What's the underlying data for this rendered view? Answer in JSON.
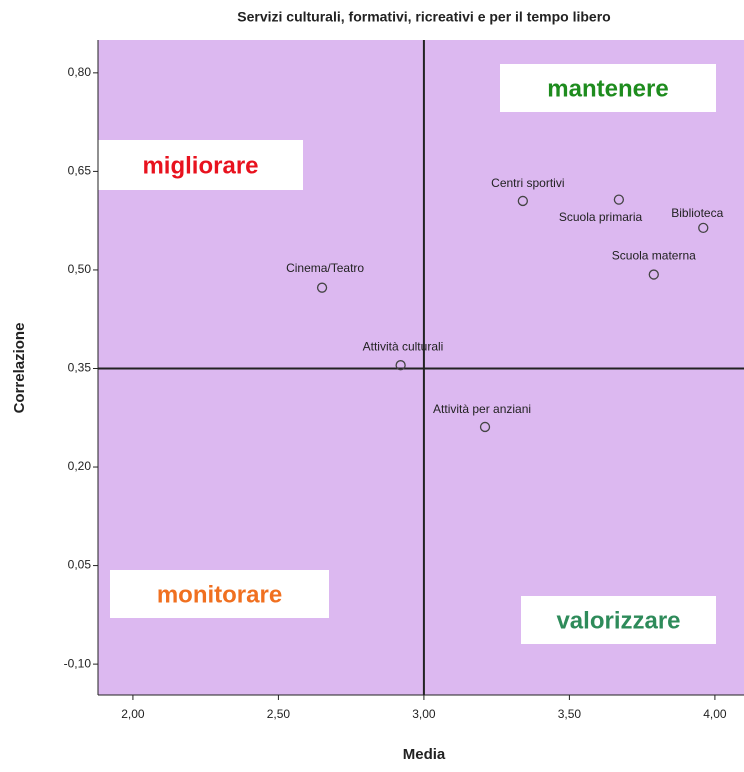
{
  "chart_data": {
    "type": "scatter",
    "title": "Servizi culturali, formativi, ricreativi e per il tempo libero",
    "x_label": "Media",
    "y_label": "Correlazione",
    "series": [
      {
        "name": null,
        "color": "#444444",
        "labels": [
          "Centri sportivi",
          "Biblioteca",
          "Scuola primaria",
          "Scuola materna",
          "Cinema/Teatro",
          "Attività culturali",
          "Attività per anziani"
        ],
        "x": [
          3.34,
          3.96,
          3.67,
          3.79,
          2.65,
          2.92,
          3.21
        ],
        "values": [
          0.605,
          0.564,
          0.607,
          0.493,
          0.473,
          0.355,
          0.261
        ]
      }
    ],
    "xlim": [
      1.88,
      4.1
    ],
    "ylim": [
      -0.147,
      0.85
    ],
    "xticks": [
      {
        "value": 2.0,
        "label": "2,00"
      },
      {
        "value": 2.5,
        "label": "2,50"
      },
      {
        "value": 3.0,
        "label": "3,00"
      },
      {
        "value": 3.5,
        "label": "3,50"
      },
      {
        "value": 4.0,
        "label": "4,00"
      }
    ],
    "yticks": [
      {
        "value": -0.1,
        "label": "-0,10"
      },
      {
        "value": 0.05,
        "label": "0,05"
      },
      {
        "value": 0.2,
        "label": "0,20"
      },
      {
        "value": 0.35,
        "label": "0,35"
      },
      {
        "value": 0.5,
        "label": "0,50"
      },
      {
        "value": 0.65,
        "label": "0,65"
      },
      {
        "value": 0.8,
        "label": "0,80"
      }
    ],
    "reference_lines": {
      "x": 3.0,
      "y": 0.35
    },
    "background": "#dcb8f0",
    "quadrants": [
      {
        "label": "mantenere",
        "color": "#1e8c1e"
      },
      {
        "label": "migliorare",
        "color": "#e8121e"
      },
      {
        "label": "monitorare",
        "color": "#f07020"
      },
      {
        "label": "valorizzare",
        "color": "#2e8b5a"
      }
    ]
  }
}
